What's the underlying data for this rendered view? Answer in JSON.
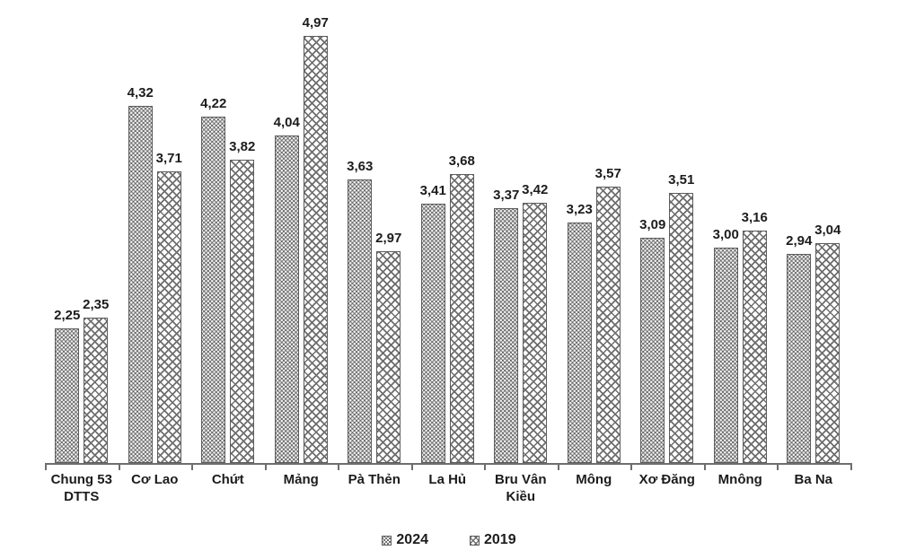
{
  "chart_data": {
    "type": "bar",
    "title": "",
    "xlabel": "",
    "ylabel": "",
    "grid": false,
    "legend_position": "bottom",
    "value_labels_shown": true,
    "decimal_separator": ",",
    "baseline_value": 1.0,
    "ylim": [
      1.0,
      5.2
    ],
    "categories": [
      "Chung 53 DTTS",
      "Cơ Lao",
      "Chứt",
      "Mảng",
      "Pà Thẻn",
      "La Hủ",
      "Bru Vân Kiều",
      "Mông",
      "Xơ Đăng",
      "Mnông",
      "Ba Na"
    ],
    "category_label_lines": [
      [
        "Chung 53",
        "DTTS"
      ],
      [
        "Cơ Lao"
      ],
      [
        "Chứt"
      ],
      [
        "Mảng"
      ],
      [
        "Pà Thẻn"
      ],
      [
        "La Hủ"
      ],
      [
        "Bru Vân",
        "Kiều"
      ],
      [
        "Mông"
      ],
      [
        "Xơ Đăng"
      ],
      [
        "Mnông"
      ],
      [
        "Ba Na"
      ]
    ],
    "series": [
      {
        "name": "2024",
        "pattern": "dots",
        "values": [
          2.25,
          4.32,
          4.22,
          4.04,
          3.63,
          3.41,
          3.37,
          3.23,
          3.09,
          3.0,
          2.94
        ]
      },
      {
        "name": "2019",
        "pattern": "crosshatch",
        "values": [
          2.35,
          3.71,
          3.82,
          4.97,
          2.97,
          3.68,
          3.42,
          3.57,
          3.51,
          3.16,
          3.04
        ]
      }
    ],
    "colors": {
      "pattern_ink": "#6e6e6e",
      "bar_border": "#5c5c5c",
      "axis": "#6e6e6e",
      "text": "#1c1c1c",
      "background": "#ffffff"
    }
  }
}
